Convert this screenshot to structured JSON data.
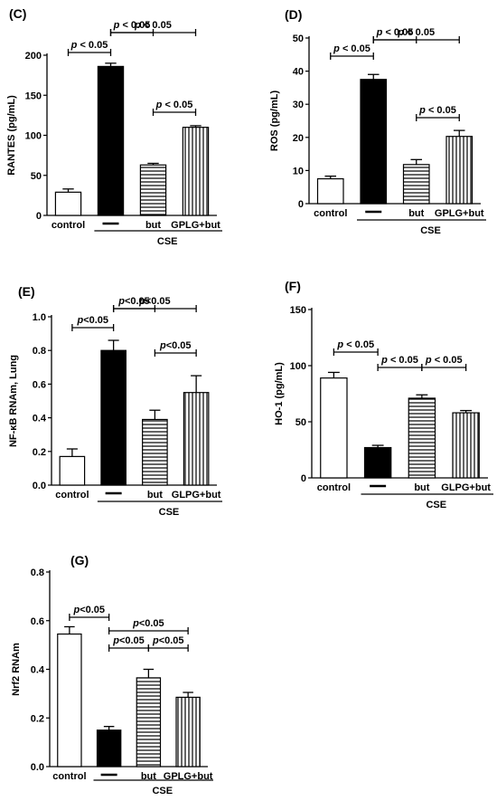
{
  "chart_data": [
    {
      "type": "bar",
      "title": "(C)",
      "ylabel": "RANTES (pg/mL)",
      "ylim": [
        0,
        200
      ],
      "yticks": [
        0,
        50,
        100,
        150,
        200
      ],
      "categories": [
        "control",
        "—",
        "but",
        "GPLG+but"
      ],
      "values": [
        29,
        186,
        63,
        110
      ],
      "errors": [
        4,
        4,
        2,
        2
      ],
      "fills": [
        "white",
        "black",
        "hstripe",
        "vstripe"
      ],
      "group_label": "CSE",
      "comparisons": [
        {
          "from": 0,
          "to": 1,
          "label": "p < 0.05"
        },
        {
          "from": 1,
          "to": 2,
          "label": "p < 0.05"
        },
        {
          "from": 1,
          "to": 3,
          "label": "p < 0.05"
        },
        {
          "from": 2,
          "to": 3,
          "label": "p < 0.05"
        }
      ]
    },
    {
      "type": "bar",
      "title": "(D)",
      "ylabel": "ROS (pg/mL)",
      "ylim": [
        0,
        50
      ],
      "yticks": [
        0,
        10,
        20,
        30,
        40,
        50
      ],
      "categories": [
        "control",
        "—",
        "but",
        "GPLG+but"
      ],
      "values": [
        7.5,
        37.5,
        11.8,
        20.3
      ],
      "errors": [
        0.8,
        1.5,
        1.5,
        1.8
      ],
      "fills": [
        "white",
        "black",
        "hstripe",
        "vstripe"
      ],
      "group_label": "CSE",
      "comparisons": [
        {
          "from": 0,
          "to": 1,
          "label": "p < 0.05"
        },
        {
          "from": 1,
          "to": 2,
          "label": "p < 0.05"
        },
        {
          "from": 1,
          "to": 3,
          "label": "p < 0.05"
        },
        {
          "from": 2,
          "to": 3,
          "label": "p < 0.05"
        }
      ]
    },
    {
      "type": "bar",
      "title": "(E)",
      "ylabel": "NF-κB RNAm, Lung",
      "ylim": [
        0,
        1.0
      ],
      "yticks": [
        0.0,
        0.2,
        0.4,
        0.6,
        0.8,
        1.0
      ],
      "tick_format": "0.0",
      "categories": [
        "control",
        "—",
        "but",
        "GLPG+but"
      ],
      "values": [
        0.17,
        0.8,
        0.39,
        0.55
      ],
      "errors": [
        0.045,
        0.06,
        0.055,
        0.1
      ],
      "fills": [
        "white",
        "black",
        "hstripe",
        "vstripe"
      ],
      "group_label": "CSE",
      "comparisons": [
        {
          "from": 0,
          "to": 1,
          "label": "p<0.05"
        },
        {
          "from": 1,
          "to": 2,
          "label": "p<0.05"
        },
        {
          "from": 1,
          "to": 3,
          "label": "p<0.05"
        },
        {
          "from": 2,
          "to": 3,
          "label": "p<0.05"
        }
      ]
    },
    {
      "type": "bar",
      "title": "(F)",
      "ylabel": "HO-1 (pg/mL)",
      "ylim": [
        0,
        150
      ],
      "yticks": [
        0,
        50,
        100,
        150
      ],
      "categories": [
        "control",
        "—",
        "but",
        "GLPG+but"
      ],
      "values": [
        89,
        27,
        71,
        58
      ],
      "errors": [
        5,
        2,
        3,
        2
      ],
      "fills": [
        "white",
        "black",
        "hstripe",
        "vstripe"
      ],
      "group_label": "CSE",
      "comparisons": [
        {
          "from": 0,
          "to": 1,
          "label": "p < 0.05"
        },
        {
          "from": 1,
          "to": 2,
          "label": "p < 0.05"
        },
        {
          "from": 2,
          "to": 3,
          "label": "p < 0.05"
        }
      ]
    },
    {
      "type": "bar",
      "title": "(G)",
      "ylabel": "Nrf2 RNAm",
      "ylim": [
        0,
        0.8
      ],
      "yticks": [
        0.0,
        0.2,
        0.4,
        0.6,
        0.8
      ],
      "tick_format": "0.0",
      "categories": [
        "control",
        "—",
        "but",
        "GPLG+but"
      ],
      "values": [
        0.545,
        0.15,
        0.365,
        0.285
      ],
      "errors": [
        0.03,
        0.015,
        0.035,
        0.02
      ],
      "fills": [
        "white",
        "black",
        "hstripe",
        "vstripe"
      ],
      "group_label": "CSE",
      "comparisons": [
        {
          "from": 0,
          "to": 1,
          "label": "p<0.05"
        },
        {
          "from": 1,
          "to": 2,
          "label": "p<0.05"
        },
        {
          "from": 1,
          "to": 3,
          "label": "p<0.05"
        },
        {
          "from": 2,
          "to": 3,
          "label": "p<0.05"
        }
      ]
    }
  ]
}
